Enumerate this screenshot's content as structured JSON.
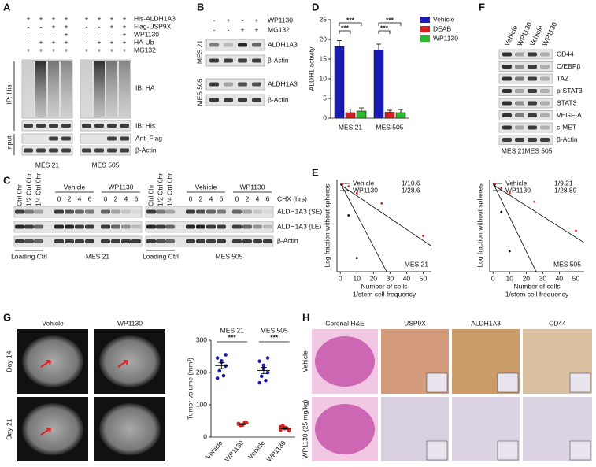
{
  "panel_labels": [
    "A",
    "B",
    "C",
    "D",
    "E",
    "F",
    "G",
    "H"
  ],
  "blot_a": {
    "rows": [
      "His-ALDH1A3",
      "Flag-USP9X",
      "WP1130",
      "HA-Ub",
      "MG132"
    ],
    "signs": [
      [
        "+",
        "+",
        "+",
        "+",
        "+",
        "+",
        "+",
        "+"
      ],
      [
        "-",
        "-",
        "+",
        "+",
        "-",
        "-",
        "+",
        "+"
      ],
      [
        "-",
        "-",
        "-",
        "+",
        "-",
        "-",
        "-",
        "+"
      ],
      [
        "-",
        "+",
        "+",
        "+",
        "-",
        "+",
        "+",
        "+"
      ],
      [
        "+",
        "+",
        "+",
        "+",
        "+",
        "+",
        "+",
        "+"
      ]
    ],
    "sides": [
      "IP: His",
      "Input"
    ],
    "labels": [
      "IB: HA",
      "IB: His",
      "Anti-Flag",
      "β-Actin"
    ],
    "cell_lines": [
      "MES 21",
      "MES 505"
    ]
  },
  "blot_b": {
    "rows": [
      "WP1130",
      "MG132"
    ],
    "signs": [
      [
        "-",
        "+",
        "-",
        "+"
      ],
      [
        "-",
        "-",
        "+",
        "+"
      ]
    ],
    "cell_lines": [
      "MES 21",
      "MES 505"
    ],
    "labels": [
      "ALDH1A3",
      "β-Actin",
      "ALDH1A3",
      "β-Actin"
    ]
  },
  "blot_c": {
    "controls": [
      "Ctrl 0hr",
      "1/2 Ctrl 0hr",
      "1/4 Ctrl 0hr"
    ],
    "groups": [
      "Vehicle",
      "WP1130"
    ],
    "times": [
      "0",
      "2",
      "4",
      "6"
    ],
    "time_label": "CHX (hrs)",
    "labels": [
      "ALDH1A3 (SE)",
      "ALDH1A3 (LE)",
      "β-Actin"
    ],
    "loading": "Loading Ctrl",
    "cell_lines": [
      "MES 21",
      "MES 505"
    ]
  },
  "blot_f": {
    "columns": [
      "Vehicle",
      "WP1130",
      "Vehicle",
      "WP1130"
    ],
    "labels": [
      "CD44",
      "C/EBPβ",
      "TAZ",
      "p-STAT3",
      "STAT3",
      "VEGF-A",
      "c-MET",
      "β-Actin"
    ],
    "cell_lines": [
      "MES 21",
      "MES 505"
    ]
  },
  "panel_g": {
    "columns": [
      "Vehicle",
      "WP1130"
    ],
    "rows": [
      "Day 14",
      "Day 21"
    ]
  },
  "panel_h": {
    "columns": [
      "Coronal H&E",
      "USP9X",
      "ALDH1A3",
      "CD44"
    ],
    "rows": [
      "Vehicle",
      "WP1130 (25 mg/kg)"
    ]
  },
  "chart_data": [
    {
      "type": "bar",
      "categories": [
        "MES 21",
        "MES 505"
      ],
      "series": [
        {
          "name": "Vehicle",
          "color": "#1a1ab4",
          "values": [
            18.2,
            17.3
          ],
          "errors": [
            1.5,
            1.5
          ]
        },
        {
          "name": "DEAB",
          "color": "#d62020",
          "values": [
            1.4,
            1.5
          ],
          "errors": [
            0.9,
            0.5
          ]
        },
        {
          "name": "WP1130",
          "color": "#2db82d",
          "values": [
            1.8,
            1.4
          ],
          "errors": [
            0.8,
            0.8
          ]
        }
      ],
      "ylabel": "ALDH1 activity",
      "ylim": [
        0,
        25
      ],
      "yticks": [
        0,
        5,
        10,
        15,
        20,
        25
      ],
      "annotations": [
        "***",
        "***",
        "***",
        "***"
      ]
    },
    {
      "type": "line",
      "series": [
        {
          "name": "Vehicle",
          "color": "#000000",
          "frequency": "1/10.6",
          "x": [
            0,
            28
          ],
          "values": [
            0,
            -2.6
          ]
        },
        {
          "name": "WP1130",
          "color": "#e02020",
          "frequency": "1/28.6",
          "x": [
            0,
            55
          ],
          "values": [
            -0.05,
            -1.85
          ]
        }
      ],
      "points": [
        {
          "color": "#000000",
          "x": [
            1,
            5,
            10
          ],
          "values": [
            -0.05,
            -0.95,
            -2.2
          ]
        },
        {
          "color": "#e02020",
          "x": [
            1,
            5,
            10,
            25,
            50
          ],
          "values": [
            -0.02,
            -0.1,
            -0.3,
            -0.6,
            -1.55
          ]
        }
      ],
      "annotation": "MES 21",
      "xlabel": "Number of cells",
      "xlabel2": "1/stem cell frequency",
      "ylabel": "Log fraction without spheres",
      "xlim": [
        -2,
        55
      ],
      "ylim": [
        -2.6,
        0.1
      ],
      "xticks": [
        0,
        10,
        20,
        30,
        40,
        50
      ]
    },
    {
      "type": "line",
      "series": [
        {
          "name": "Vehicle",
          "color": "#000000",
          "frequency": "1/9.21",
          "x": [
            0,
            26
          ],
          "values": [
            0,
            -2.6
          ]
        },
        {
          "name": "WP1130",
          "color": "#e02020",
          "frequency": "1/28.89",
          "x": [
            0,
            55
          ],
          "values": [
            -0.05,
            -1.75
          ]
        }
      ],
      "points": [
        {
          "color": "#000000",
          "x": [
            1,
            5,
            10
          ],
          "values": [
            -0.05,
            -0.85,
            -2.0
          ]
        },
        {
          "color": "#e02020",
          "x": [
            1,
            5,
            10,
            25,
            50
          ],
          "values": [
            -0.02,
            -0.15,
            -0.3,
            -0.55,
            -1.4
          ]
        }
      ],
      "annotation": "MES 505",
      "xlabel": "Number of cells",
      "xlabel2": "1/stem cell frequency",
      "ylabel": "Log fraction without spheres",
      "xlim": [
        -2,
        55
      ],
      "ylim": [
        -2.6,
        0.1
      ],
      "xticks": [
        0,
        10,
        20,
        30,
        40,
        50
      ]
    },
    {
      "type": "scatter",
      "groups": [
        "MES 21",
        "MES 505"
      ],
      "categories": [
        "Vehicle",
        "WP1130",
        "Vehicle",
        "WP1130"
      ],
      "colors": [
        "#1a1ab4",
        "#e02020",
        "#1a1ab4",
        "#e02020"
      ],
      "values": [
        [
          245,
          232,
          220,
          205,
          190,
          182,
          236,
          255
        ],
        [
          42,
          38,
          44,
          36,
          46,
          40,
          37
        ],
        [
          235,
          212,
          200,
          188,
          175,
          168,
          222,
          245
        ],
        [
          32,
          26,
          20,
          36,
          28,
          22,
          30,
          24
        ]
      ],
      "means": [
        221,
        40,
        206,
        27
      ],
      "errors": [
        9,
        1.5,
        10,
        2
      ],
      "ylabel": "Tumor volume (mm³)",
      "ylim": [
        0,
        300
      ],
      "yticks": [
        0,
        100,
        200,
        300
      ],
      "annotations": [
        "***",
        "***"
      ]
    }
  ]
}
